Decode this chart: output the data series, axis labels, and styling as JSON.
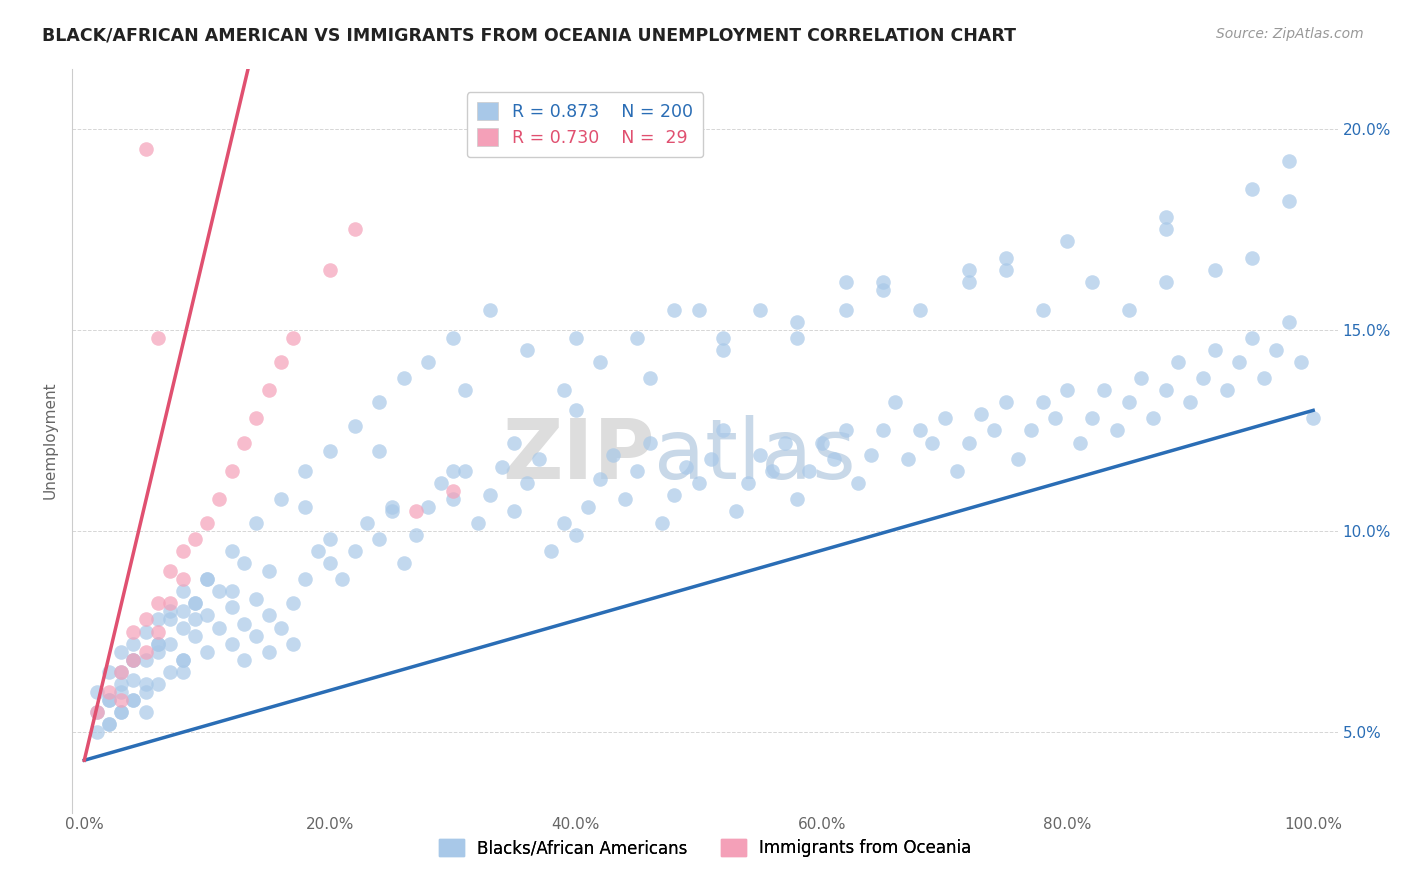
{
  "title": "BLACK/AFRICAN AMERICAN VS IMMIGRANTS FROM OCEANIA UNEMPLOYMENT CORRELATION CHART",
  "source": "Source: ZipAtlas.com",
  "ylabel": "Unemployment",
  "watermark": "ZIPatlas",
  "legend": {
    "blue_R": "0.873",
    "blue_N": "200",
    "pink_R": "0.730",
    "pink_N": "29"
  },
  "blue_color": "#a8c8e8",
  "pink_color": "#f4a0b8",
  "blue_line_color": "#2a6db5",
  "pink_line_color": "#e05070",
  "xlim": [
    -0.01,
    1.02
  ],
  "ylim": [
    0.03,
    0.215
  ],
  "x_ticks": [
    0.0,
    0.2,
    0.4,
    0.6,
    0.8,
    1.0
  ],
  "x_tick_labels": [
    "0.0%",
    "20.0%",
    "40.0%",
    "60.0%",
    "80.0%",
    "100.0%"
  ],
  "y_ticks": [
    0.05,
    0.1,
    0.15,
    0.2
  ],
  "y_tick_labels": [
    "5.0%",
    "10.0%",
    "15.0%",
    "20.0%"
  ],
  "blue_scatter_x": [
    0.01,
    0.01,
    0.02,
    0.02,
    0.02,
    0.03,
    0.03,
    0.03,
    0.04,
    0.04,
    0.04,
    0.05,
    0.05,
    0.05,
    0.06,
    0.06,
    0.07,
    0.07,
    0.08,
    0.08,
    0.08,
    0.09,
    0.09,
    0.1,
    0.1,
    0.1,
    0.11,
    0.11,
    0.12,
    0.12,
    0.13,
    0.13,
    0.14,
    0.14,
    0.15,
    0.15,
    0.16,
    0.17,
    0.17,
    0.18,
    0.19,
    0.2,
    0.21,
    0.22,
    0.23,
    0.24,
    0.25,
    0.26,
    0.27,
    0.28,
    0.29,
    0.3,
    0.31,
    0.32,
    0.33,
    0.34,
    0.35,
    0.36,
    0.37,
    0.38,
    0.39,
    0.4,
    0.41,
    0.42,
    0.43,
    0.44,
    0.45,
    0.46,
    0.47,
    0.48,
    0.49,
    0.5,
    0.51,
    0.52,
    0.53,
    0.54,
    0.55,
    0.56,
    0.57,
    0.58,
    0.59,
    0.6,
    0.61,
    0.62,
    0.63,
    0.64,
    0.65,
    0.66,
    0.67,
    0.68,
    0.69,
    0.7,
    0.71,
    0.72,
    0.73,
    0.74,
    0.75,
    0.76,
    0.77,
    0.78,
    0.79,
    0.8,
    0.81,
    0.82,
    0.83,
    0.84,
    0.85,
    0.86,
    0.87,
    0.88,
    0.89,
    0.9,
    0.91,
    0.92,
    0.93,
    0.94,
    0.95,
    0.96,
    0.97,
    0.98,
    0.99,
    1.0,
    0.02,
    0.03,
    0.04,
    0.05,
    0.06,
    0.07,
    0.08,
    0.09,
    0.1,
    0.12,
    0.14,
    0.16,
    0.18,
    0.2,
    0.22,
    0.24,
    0.26,
    0.28,
    0.3,
    0.33,
    0.36,
    0.39,
    0.42,
    0.45,
    0.48,
    0.52,
    0.55,
    0.58,
    0.62,
    0.65,
    0.68,
    0.72,
    0.75,
    0.78,
    0.82,
    0.85,
    0.88,
    0.92,
    0.95,
    0.98,
    0.03,
    0.06,
    0.09,
    0.12,
    0.15,
    0.2,
    0.25,
    0.3,
    0.35,
    0.4,
    0.46,
    0.52,
    0.58,
    0.65,
    0.72,
    0.8,
    0.88,
    0.95,
    0.04,
    0.08,
    0.13,
    0.18,
    0.24,
    0.31,
    0.4,
    0.5,
    0.62,
    0.75,
    0.88,
    0.98,
    0.01,
    0.02,
    0.03,
    0.04,
    0.05,
    0.06,
    0.07,
    0.08
  ],
  "blue_scatter_y": [
    0.055,
    0.06,
    0.052,
    0.065,
    0.058,
    0.06,
    0.07,
    0.055,
    0.063,
    0.072,
    0.058,
    0.068,
    0.075,
    0.062,
    0.07,
    0.078,
    0.072,
    0.08,
    0.068,
    0.076,
    0.085,
    0.074,
    0.082,
    0.07,
    0.079,
    0.088,
    0.076,
    0.085,
    0.072,
    0.081,
    0.068,
    0.077,
    0.074,
    0.083,
    0.07,
    0.079,
    0.076,
    0.072,
    0.082,
    0.088,
    0.095,
    0.092,
    0.088,
    0.095,
    0.102,
    0.098,
    0.105,
    0.092,
    0.099,
    0.106,
    0.112,
    0.108,
    0.115,
    0.102,
    0.109,
    0.116,
    0.105,
    0.112,
    0.118,
    0.095,
    0.102,
    0.099,
    0.106,
    0.113,
    0.119,
    0.108,
    0.115,
    0.122,
    0.102,
    0.109,
    0.116,
    0.112,
    0.118,
    0.125,
    0.105,
    0.112,
    0.119,
    0.115,
    0.122,
    0.108,
    0.115,
    0.122,
    0.118,
    0.125,
    0.112,
    0.119,
    0.125,
    0.132,
    0.118,
    0.125,
    0.122,
    0.128,
    0.115,
    0.122,
    0.129,
    0.125,
    0.132,
    0.118,
    0.125,
    0.132,
    0.128,
    0.135,
    0.122,
    0.128,
    0.135,
    0.125,
    0.132,
    0.138,
    0.128,
    0.135,
    0.142,
    0.132,
    0.138,
    0.145,
    0.135,
    0.142,
    0.148,
    0.138,
    0.145,
    0.152,
    0.142,
    0.128,
    0.058,
    0.062,
    0.068,
    0.055,
    0.072,
    0.078,
    0.065,
    0.082,
    0.088,
    0.095,
    0.102,
    0.108,
    0.115,
    0.12,
    0.126,
    0.132,
    0.138,
    0.142,
    0.148,
    0.155,
    0.145,
    0.135,
    0.142,
    0.148,
    0.155,
    0.148,
    0.155,
    0.148,
    0.155,
    0.162,
    0.155,
    0.162,
    0.165,
    0.155,
    0.162,
    0.155,
    0.162,
    0.165,
    0.168,
    0.192,
    0.065,
    0.072,
    0.078,
    0.085,
    0.09,
    0.098,
    0.106,
    0.115,
    0.122,
    0.13,
    0.138,
    0.145,
    0.152,
    0.16,
    0.165,
    0.172,
    0.178,
    0.185,
    0.068,
    0.08,
    0.092,
    0.106,
    0.12,
    0.135,
    0.148,
    0.155,
    0.162,
    0.168,
    0.175,
    0.182,
    0.05,
    0.052,
    0.055,
    0.058,
    0.06,
    0.062,
    0.065,
    0.068
  ],
  "pink_scatter_x": [
    0.01,
    0.02,
    0.03,
    0.03,
    0.04,
    0.04,
    0.05,
    0.05,
    0.06,
    0.06,
    0.07,
    0.07,
    0.08,
    0.08,
    0.09,
    0.1,
    0.11,
    0.12,
    0.13,
    0.14,
    0.15,
    0.16,
    0.17,
    0.2,
    0.22,
    0.27,
    0.3,
    0.05,
    0.06
  ],
  "pink_scatter_y": [
    0.055,
    0.06,
    0.058,
    0.065,
    0.068,
    0.075,
    0.07,
    0.078,
    0.075,
    0.082,
    0.082,
    0.09,
    0.088,
    0.095,
    0.098,
    0.102,
    0.108,
    0.115,
    0.122,
    0.128,
    0.135,
    0.142,
    0.148,
    0.165,
    0.175,
    0.105,
    0.11,
    0.195,
    0.148
  ],
  "blue_trendline": {
    "x_start": 0.0,
    "x_end": 1.0,
    "y_start": 0.043,
    "y_end": 0.13
  },
  "pink_trendline": {
    "x_start": 0.0,
    "x_end": 0.3,
    "y_start": 0.043,
    "y_end": 0.43
  }
}
